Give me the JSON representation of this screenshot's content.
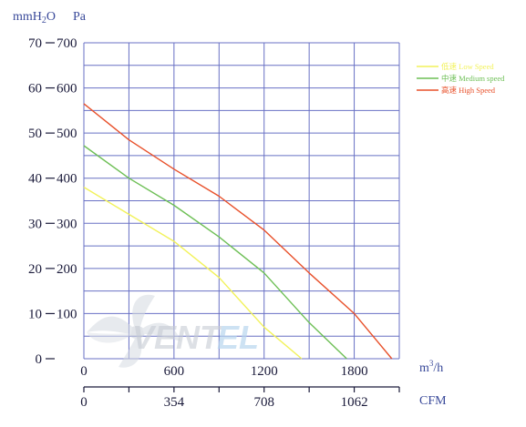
{
  "chart_data": {
    "type": "line",
    "title": "",
    "y_units": {
      "left": "mmH2O",
      "right": "Pa"
    },
    "x_units": {
      "primary": "m³/h",
      "secondary": "CFM"
    },
    "x_primary_ticks": [
      "0",
      "600",
      "1200",
      "1800"
    ],
    "x_secondary_ticks": [
      "0",
      "354",
      "708",
      "1062"
    ],
    "y_mmh2o_ticks": [
      "0",
      "10",
      "20",
      "30",
      "40",
      "50",
      "60",
      "70"
    ],
    "y_pa_ticks": [
      "",
      "100",
      "200",
      "300",
      "400",
      "500",
      "600",
      "700"
    ],
    "xlim": [
      0,
      2100
    ],
    "ylim": [
      0,
      700
    ],
    "grid": true,
    "legend_position": "top-right",
    "watermark": "Ventel",
    "series": [
      {
        "name": "低速 Low Speed",
        "color": "#f2f25a",
        "points": [
          [
            0,
            380
          ],
          [
            300,
            320
          ],
          [
            600,
            260
          ],
          [
            900,
            180
          ],
          [
            1200,
            70
          ],
          [
            1450,
            0
          ]
        ]
      },
      {
        "name": "中速 Medium speed",
        "color": "#6dbf55",
        "points": [
          [
            0,
            472
          ],
          [
            300,
            400
          ],
          [
            600,
            340
          ],
          [
            900,
            270
          ],
          [
            1200,
            190
          ],
          [
            1500,
            80
          ],
          [
            1750,
            0
          ]
        ]
      },
      {
        "name": "高速 High Speed",
        "color": "#e8502a",
        "points": [
          [
            0,
            565
          ],
          [
            300,
            485
          ],
          [
            600,
            420
          ],
          [
            900,
            360
          ],
          [
            1200,
            285
          ],
          [
            1500,
            190
          ],
          [
            1800,
            100
          ],
          [
            2050,
            0
          ]
        ]
      }
    ]
  }
}
